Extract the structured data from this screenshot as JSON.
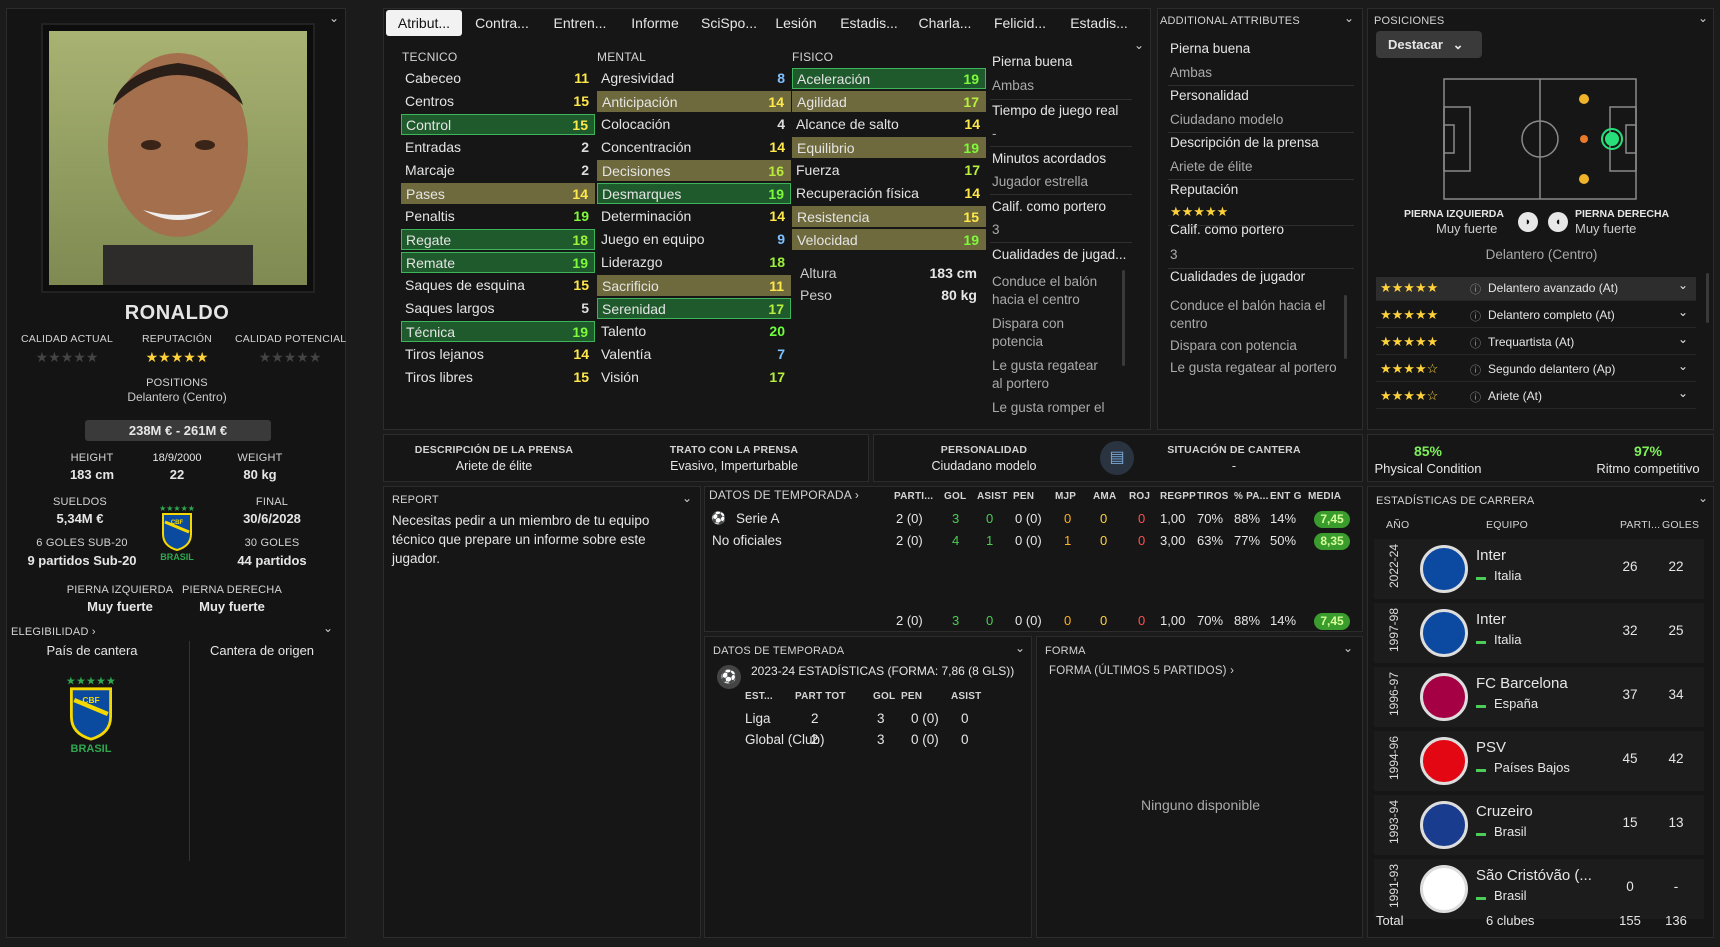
{
  "tabs": [
    "Atribut...",
    "Contra...",
    "Entren...",
    "Informe",
    "SciSpo...",
    "Lesión",
    "Estadis...",
    "Charla...",
    "Felicid...",
    "Estadis..."
  ],
  "player": {
    "name": "RONALDO",
    "calidad_actual_label": "CALIDAD ACTUAL",
    "reputacion_label": "REPUTACIÓN",
    "calidad_potencial_label": "CALIDAD POTENCIAL",
    "positions_label": "POSITIONS",
    "positions_value": "Delantero (Centro)",
    "value": "238M € - 261M €",
    "height_label": "HEIGHT",
    "height": "183 cm",
    "dob": "18/9/2000",
    "age": "22",
    "weight_label": "WEIGHT",
    "weight": "80 kg",
    "sueldos_label": "SUELDOS",
    "sueldos": "5,34M €",
    "final_label": "FINAL",
    "final": "30/6/2028",
    "u20_goals_label": "6 GOLES SUB-20",
    "u20_apps": "9 partidos Sub-20",
    "goals_label": "30 GOLES",
    "apps": "44 partidos",
    "brasil_label": "BRASIL",
    "left_foot_label": "PIERNA IZQUIERDA",
    "left_foot": "Muy fuerte",
    "right_foot_label": "PIERNA DERECHA",
    "right_foot": "Muy fuerte",
    "elegibilidad": "ELEGIBILIDAD",
    "pais_cantera": "País de cantera",
    "cantera_origen": "Cantera de origen",
    "stars_rep": "★★★★★",
    "stars_empty": "★★★★★"
  },
  "attributes": {
    "tecnico_label": "TECNICO",
    "mental_label": "MENTAL",
    "fisico_label": "FISICO",
    "tecnico": [
      [
        "Cabeceo",
        "11",
        ""
      ],
      [
        "Centros",
        "15",
        ""
      ],
      [
        "Control",
        "15",
        "g"
      ],
      [
        "Entradas",
        "2",
        ""
      ],
      [
        "Marcaje",
        "2",
        ""
      ],
      [
        "Pases",
        "14",
        "o"
      ],
      [
        "Penaltis",
        "19",
        ""
      ],
      [
        "Regate",
        "18",
        "g"
      ],
      [
        "Remate",
        "19",
        "g"
      ],
      [
        "Saques de esquina",
        "15",
        ""
      ],
      [
        "Saques largos",
        "5",
        ""
      ],
      [
        "Técnica",
        "19",
        "g"
      ],
      [
        "Tiros lejanos",
        "14",
        ""
      ],
      [
        "Tiros libres",
        "15",
        ""
      ]
    ],
    "mental": [
      [
        "Agresividad",
        "8",
        ""
      ],
      [
        "Anticipación",
        "14",
        "o"
      ],
      [
        "Colocación",
        "4",
        ""
      ],
      [
        "Concentración",
        "14",
        ""
      ],
      [
        "Decisiones",
        "16",
        "o"
      ],
      [
        "Desmarques",
        "19",
        "g"
      ],
      [
        "Determinación",
        "14",
        ""
      ],
      [
        "Juego en equipo",
        "9",
        ""
      ],
      [
        "Liderazgo",
        "18",
        ""
      ],
      [
        "Sacrificio",
        "11",
        "o"
      ],
      [
        "Serenidad",
        "17",
        "g"
      ],
      [
        "Talento",
        "20",
        ""
      ],
      [
        "Valentía",
        "7",
        ""
      ],
      [
        "Visión",
        "17",
        ""
      ]
    ],
    "fisico": [
      [
        "Aceleración",
        "19",
        "g"
      ],
      [
        "Agilidad",
        "17",
        "o"
      ],
      [
        "Alcance de salto",
        "14",
        ""
      ],
      [
        "Equilibrio",
        "19",
        "o"
      ],
      [
        "Fuerza",
        "17",
        ""
      ],
      [
        "Recuperación física",
        "14",
        ""
      ],
      [
        "Resistencia",
        "15",
        "o"
      ],
      [
        "Velocidad",
        "19",
        "o"
      ]
    ],
    "altura_label": "Altura",
    "altura": "183 cm",
    "peso_label": "Peso",
    "peso": "80 kg"
  },
  "side_info": {
    "pierna_buena_label": "Pierna buena",
    "pierna_buena": "Ambas",
    "tiempo_label": "Tiempo de juego real",
    "tiempo": "-",
    "minutos_label": "Minutos acordados",
    "minutos": "Jugador estrella",
    "calif_label": "Calif. como portero",
    "calif": "3",
    "cualidades_label": "Cualidades de jugad...",
    "cualidades": [
      "Conduce el balón hacia el centro",
      "Dispara con potencia",
      "Le gusta regatear al portero",
      "Le gusta romper el"
    ]
  },
  "additional": {
    "title": "ADDITIONAL ATTRIBUTES",
    "pierna_buena_label": "Pierna buena",
    "pierna_buena": "Ambas",
    "personalidad_label": "Personalidad",
    "personalidad": "Ciudadano modelo",
    "desc_prensa_label": "Descripción de la prensa",
    "desc_prensa": "Ariete de élite",
    "reputacion_label": "Reputación",
    "reputacion_stars": "★★★★★",
    "calif_label": "Calif. como portero",
    "calif": "3",
    "cualidades_label": "Cualidades de jugador",
    "cualidades": [
      "Conduce el balón hacia el centro",
      "Dispara con potencia",
      "Le gusta regatear al portero"
    ]
  },
  "posiciones": {
    "title": "POSICIONES",
    "dropdown": "Destacar",
    "left_foot_label": "PIERNA IZQUIERDA",
    "left_foot": "Muy fuerte",
    "right_foot_label": "PIERNA DERECHA",
    "right_foot": "Muy fuerte",
    "position": "Delantero (Centro)",
    "roles": [
      [
        "★★★★★",
        "Delantero avanzado (At)"
      ],
      [
        "★★★★★",
        "Delantero completo (At)"
      ],
      [
        "★★★★★",
        "Trequartista (At)"
      ],
      [
        "★★★★☆",
        "Segundo delantero (Ap)"
      ],
      [
        "★★★★☆",
        "Ariete (At)"
      ]
    ]
  },
  "press": {
    "desc_label": "DESCRIPCIÓN DE LA PRENSA",
    "desc": "Ariete de élite",
    "trato_label": "TRATO CON LA PRENSA",
    "trato": "Evasivo, Imperturbable",
    "pers_label": "PERSONALIDAD",
    "pers": "Ciudadano modelo",
    "cantera_label": "SITUACIÓN DE CANTERA",
    "cantera": "-",
    "phys_pct": "85%",
    "phys_label": "Physical Condition",
    "ritmo_pct": "97%",
    "ritmo_label": "Ritmo competitivo"
  },
  "report": {
    "title": "REPORT",
    "text": "Necesitas pedir a un miembro de tu equipo técnico que prepare un informe sobre este jugador."
  },
  "season": {
    "title": "DATOS DE TEMPORADA",
    "headers": [
      "PARTI...",
      "GOL",
      "ASIST",
      "PEN",
      "MJP",
      "AMA",
      "ROJ",
      "REGPP",
      "TIROS",
      "% PA...",
      "ENT G",
      "MEDIA"
    ],
    "rows": [
      [
        "Serie A",
        "2 (0)",
        "3",
        "0",
        "0 (0)",
        "0",
        "0",
        "0",
        "1,00",
        "70%",
        "88%",
        "14%",
        "7,45"
      ],
      [
        "No oficiales",
        "2 (0)",
        "4",
        "1",
        "0 (0)",
        "1",
        "0",
        "0",
        "3,00",
        "63%",
        "77%",
        "50%",
        "8,35"
      ]
    ],
    "total": [
      "2 (0)",
      "3",
      "0",
      "0 (0)",
      "0",
      "0",
      "0",
      "1,00",
      "70%",
      "88%",
      "14%",
      "7,45"
    ]
  },
  "season2": {
    "title": "DATOS DE TEMPORADA",
    "subtitle": "2023-24 ESTADÍSTICAS (FORMA: 7,86 (8 GLS))",
    "headers": [
      "EST...",
      "PART TOT",
      "GOL",
      "PEN",
      "ASIST"
    ],
    "rows": [
      [
        "Liga",
        "2",
        "3",
        "0 (0)",
        "0"
      ],
      [
        "Global (Club)",
        "2",
        "3",
        "0 (0)",
        "0"
      ]
    ]
  },
  "forma": {
    "title": "FORMA",
    "sub": "FORMA (ÚLTIMOS 5 PARTIDOS)",
    "empty": "Ninguno disponible"
  },
  "career": {
    "title": "ESTADÍSTICAS DE CARRERA",
    "h_year": "AÑO",
    "h_team": "EQUIPO",
    "h_apps": "PARTI...",
    "h_goals": "GOLES",
    "rows": [
      [
        "2022-24",
        "Inter",
        "Italia",
        "26",
        "22"
      ],
      [
        "1997-98",
        "Inter",
        "Italia",
        "32",
        "25"
      ],
      [
        "1996-97",
        "FC Barcelona",
        "España",
        "37",
        "34"
      ],
      [
        "1994-96",
        "PSV",
        "Países Bajos",
        "45",
        "42"
      ],
      [
        "1993-94",
        "Cruzeiro",
        "Brasil",
        "15",
        "13"
      ],
      [
        "1991-93",
        "São Cristóvão (...",
        "Brasil",
        "0",
        "-"
      ]
    ],
    "total_label": "Total",
    "total_clubs": "6 clubes",
    "total_apps": "155",
    "total_goals": "136"
  },
  "colors": {
    "accent_green": "#3fb55b",
    "gold": "#ffd23a",
    "bg": "#161616"
  }
}
